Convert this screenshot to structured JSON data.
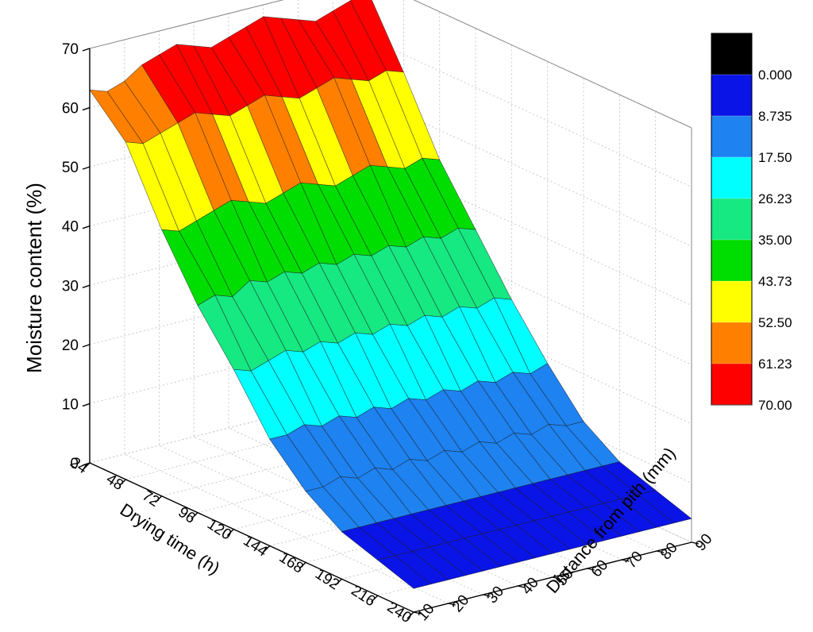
{
  "chart_data": {
    "type": "surface3d",
    "title": "",
    "x_axis": {
      "label": "Drying time (h)",
      "ticks": [
        "24",
        "48",
        "72",
        "96",
        "120",
        "144",
        "168",
        "192",
        "216",
        "240"
      ],
      "range": [
        24,
        240
      ]
    },
    "y_axis": {
      "label": "Distance from pith (mm)",
      "ticks": [
        "10",
        "20",
        "30",
        "40",
        "50",
        "60",
        "70",
        "80",
        "90"
      ],
      "range": [
        10,
        90
      ]
    },
    "z_axis": {
      "label": "Moisture content (%)",
      "ticks": [
        "0",
        "10",
        "20",
        "30",
        "40",
        "50",
        "60",
        "70"
      ],
      "range": [
        0,
        70
      ]
    },
    "drying_time_h": [
      24,
      48,
      72,
      96,
      120,
      144,
      168,
      192,
      216,
      240
    ],
    "distance_mm": [
      10,
      15,
      20,
      25,
      30,
      35,
      40,
      45,
      50,
      55,
      60,
      65,
      70,
      75,
      80,
      85,
      90
    ],
    "moisture_by_time": [
      [
        63,
        62,
        63,
        65,
        66,
        67,
        66,
        65,
        66,
        67,
        68,
        67,
        66,
        65,
        66,
        67,
        68
      ],
      [
        57,
        56,
        57,
        58,
        59,
        58,
        57,
        58,
        59,
        58,
        57,
        58,
        59,
        58,
        57,
        58,
        57
      ],
      [
        45,
        44,
        45,
        46,
        47,
        46,
        45,
        46,
        47,
        46,
        45,
        46,
        47,
        46,
        45,
        46,
        45
      ],
      [
        35,
        36,
        35,
        37,
        36,
        37,
        36,
        37,
        36,
        37,
        36,
        37,
        36,
        37,
        36,
        37,
        36
      ],
      [
        27,
        26,
        27,
        28,
        27,
        28,
        27,
        28,
        27,
        28,
        27,
        28,
        27,
        28,
        27,
        28,
        27
      ],
      [
        18,
        18,
        19,
        18,
        19,
        18,
        19,
        18,
        19,
        18,
        19,
        18,
        19,
        18,
        19,
        18,
        19
      ],
      [
        12,
        12,
        13,
        12,
        13,
        12,
        13,
        12,
        13,
        12,
        13,
        12,
        13,
        12,
        13,
        12,
        12
      ],
      [
        8,
        8,
        8,
        8,
        8,
        8,
        8,
        8,
        8,
        8,
        8,
        8,
        8,
        8,
        8,
        8,
        8
      ],
      [
        6,
        6,
        6,
        6,
        6,
        6,
        6,
        6,
        6,
        6,
        6,
        6,
        6,
        6,
        6,
        6,
        6
      ],
      [
        4,
        4,
        4,
        4,
        4,
        4,
        4,
        4,
        4,
        4,
        4,
        4,
        4,
        4,
        4,
        4,
        4
      ]
    ],
    "colorbar": {
      "levels": [
        "0.000",
        "8.735",
        "17.50",
        "26.23",
        "35.00",
        "43.73",
        "52.50",
        "61.23",
        "70.00"
      ],
      "colors": [
        "#000000",
        "#0a14e6",
        "#1e82f0",
        "#00ffff",
        "#16e882",
        "#00dd00",
        "#ffff00",
        "#ff8000",
        "#ff0000"
      ]
    },
    "grid": true
  }
}
